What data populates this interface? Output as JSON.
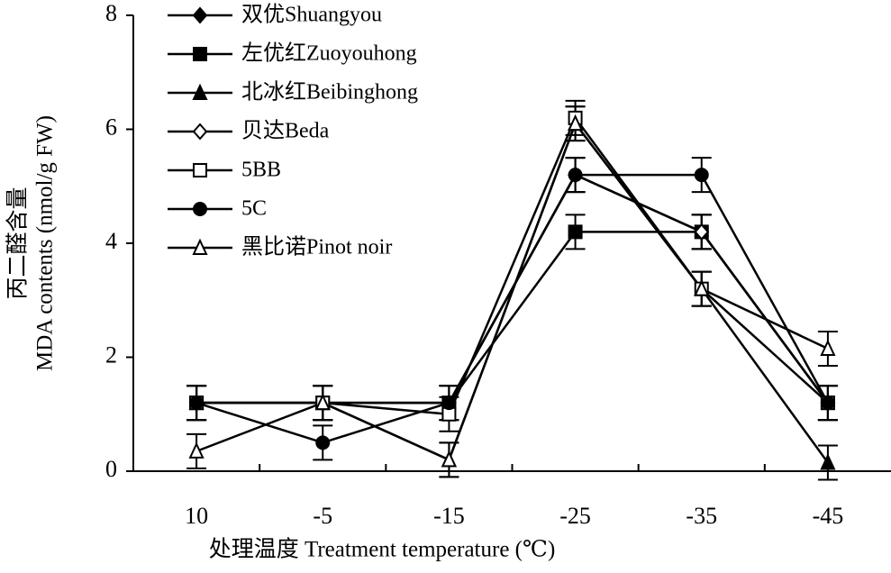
{
  "chart_data": {
    "type": "line",
    "x_label": "处理温度 Treatment temperature (℃)",
    "y_label": [
      "丙二醛含量",
      "MDA contents (nmol/g FW)"
    ],
    "categories": [
      "10",
      "-5",
      "-15",
      "-25",
      "-35",
      "-45"
    ],
    "ylim": [
      0,
      8
    ],
    "yticks": [
      0,
      2,
      4,
      6,
      8
    ],
    "series": [
      {
        "name": "双优Shuangyou",
        "color": "#000000",
        "marker": "diamond-filled",
        "values": [
          1.2,
          1.2,
          1.2,
          5.2,
          4.2,
          1.2
        ],
        "errors": [
          0.3,
          0.3,
          0.3,
          0.3,
          0.3,
          0.3
        ]
      },
      {
        "name": "左优红Zuoyouhong",
        "color": "#000000",
        "marker": "square-filled",
        "values": [
          1.2,
          1.2,
          1.2,
          4.2,
          4.2,
          1.2
        ],
        "errors": [
          0.3,
          0.3,
          0.3,
          0.3,
          0.3,
          0.3
        ]
      },
      {
        "name": "北冰红Beibinghong",
        "color": "#000000",
        "marker": "triangle-filled",
        "values": [
          1.2,
          1.2,
          0.2,
          6.1,
          3.2,
          0.15
        ],
        "errors": [
          0.3,
          0.3,
          0.3,
          0.3,
          0.3,
          0.3
        ]
      },
      {
        "name": "贝达Beda",
        "color": "#000000",
        "marker": "diamond-open",
        "values": [
          1.2,
          1.2,
          1.2,
          5.2,
          4.2,
          1.2
        ],
        "errors": [
          0.3,
          0.3,
          0.3,
          0.3,
          0.3,
          0.3
        ]
      },
      {
        "name": "5BB",
        "color": "#000000",
        "marker": "square-open",
        "values": [
          1.2,
          1.2,
          1.0,
          6.2,
          3.2,
          1.2
        ],
        "errors": [
          0.3,
          0.3,
          0.3,
          0.3,
          0.3,
          0.3
        ]
      },
      {
        "name": "5C",
        "color": "#000000",
        "marker": "circle-filled",
        "values": [
          1.2,
          0.5,
          1.2,
          5.2,
          5.2,
          1.2
        ],
        "errors": [
          0.3,
          0.3,
          0.3,
          0.3,
          0.3,
          0.3
        ]
      },
      {
        "name": "黑比诺Pinot noir",
        "color": "#000000",
        "marker": "triangle-open",
        "values": [
          0.35,
          1.2,
          0.2,
          6.1,
          3.2,
          2.15
        ],
        "errors": [
          0.3,
          0.3,
          0.3,
          0.3,
          0.3,
          0.3
        ]
      }
    ]
  }
}
